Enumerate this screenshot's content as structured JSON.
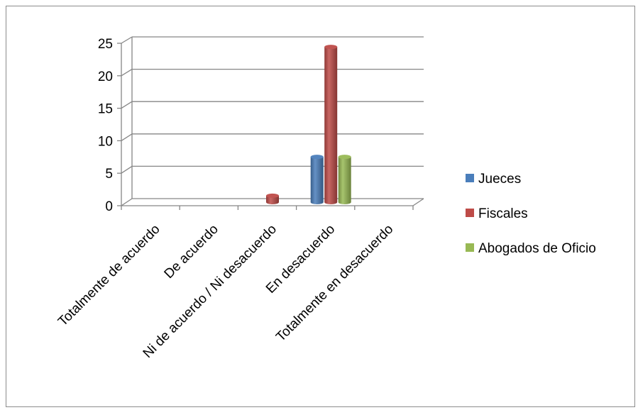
{
  "chart_data": {
    "type": "bar",
    "style": "3d-cylinder",
    "categories": [
      "Totalmente de acuerdo",
      "De acuerdo",
      "Ni de acuerdo / Ni desacuerdo",
      "En desacuerdo",
      "Totalmente en desacuerdo"
    ],
    "series": [
      {
        "name": "Jueces",
        "color": "#4a7ebb",
        "values": [
          0,
          0,
          0,
          7,
          0
        ]
      },
      {
        "name": "Fiscales",
        "color": "#be4b48",
        "values": [
          0,
          0,
          1,
          24,
          0
        ]
      },
      {
        "name": "Abogados de Oficio",
        "color": "#98b954",
        "values": [
          0,
          0,
          0,
          7,
          0
        ]
      }
    ],
    "ylim": [
      0,
      25
    ],
    "yticks": [
      "0",
      "5",
      "10",
      "15",
      "20",
      "25"
    ],
    "grid": true,
    "legend_position": "right"
  }
}
